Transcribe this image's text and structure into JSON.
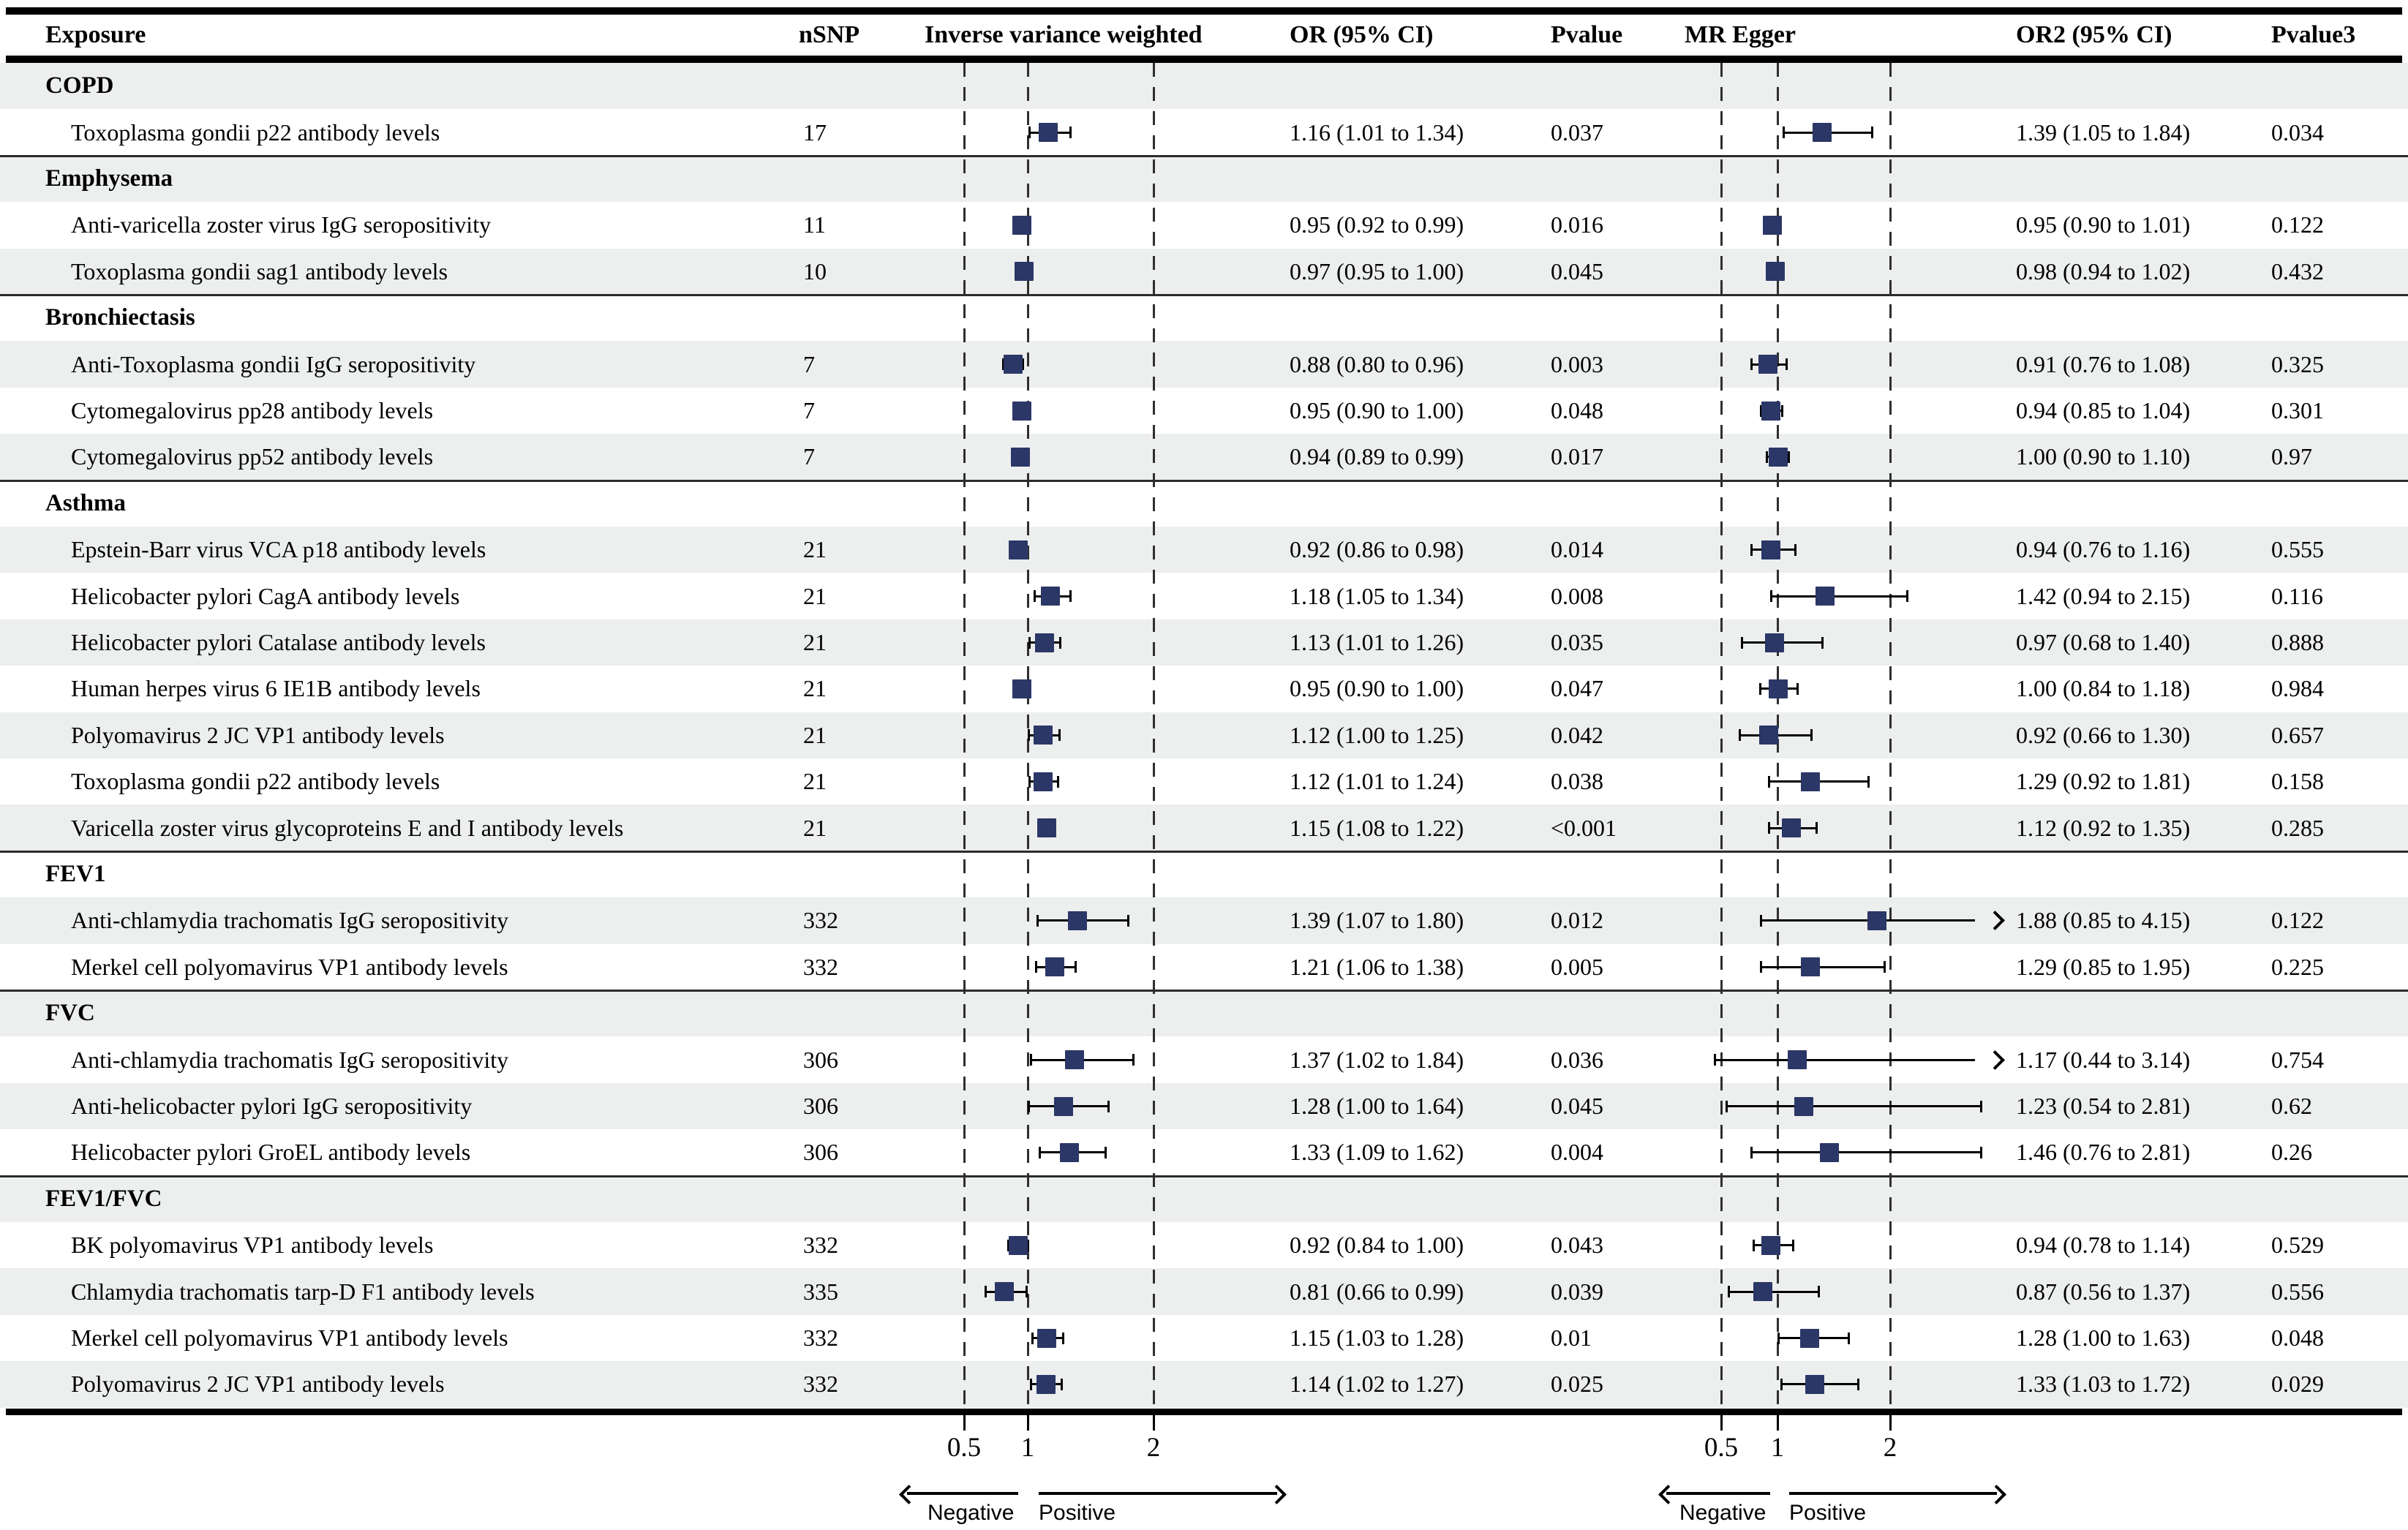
{
  "header": {
    "exposure": "Exposure",
    "nsnp": "nSNP",
    "ivw": "Inverse variance weighted",
    "or": "OR (95% CI)",
    "pvalue": "Pvalue",
    "egger": "MR Egger",
    "or2": "OR2 (95% CI)",
    "pvalue3": "Pvalue3"
  },
  "axis": {
    "ticks": [
      "0.5",
      "1",
      "2"
    ],
    "negative": "Negative",
    "positive": "Positive"
  },
  "colors": {
    "marker": "#2b3766",
    "row_shade": "#ecefee",
    "accent_line": "#000000"
  },
  "chart_data": {
    "type": "forest",
    "x_scale": "linear",
    "x_ticks": [
      0.5,
      1,
      2
    ],
    "series_names": [
      "Inverse variance weighted",
      "MR Egger"
    ],
    "rows": [
      {
        "type": "group",
        "label": "COPD"
      },
      {
        "type": "data",
        "exposure": "Toxoplasma gondii p22 antibody levels",
        "nsnp": "17",
        "ivw": {
          "est": 1.16,
          "lo": 1.01,
          "hi": 1.34,
          "text": "1.16 (1.01 to 1.34)",
          "p": "0.037"
        },
        "egger": {
          "est": 1.39,
          "lo": 1.05,
          "hi": 1.84,
          "text": "1.39 (1.05 to 1.84)",
          "p": "0.034"
        }
      },
      {
        "type": "group",
        "label": "Emphysema"
      },
      {
        "type": "data",
        "exposure": "Anti-varicella zoster virus IgG seropositivity",
        "nsnp": "11",
        "ivw": {
          "est": 0.95,
          "lo": 0.92,
          "hi": 0.99,
          "text": "0.95 (0.92 to 0.99)",
          "p": "0.016"
        },
        "egger": {
          "est": 0.95,
          "lo": 0.9,
          "hi": 1.01,
          "text": "0.95 (0.90 to 1.01)",
          "p": "0.122"
        }
      },
      {
        "type": "data",
        "exposure": "Toxoplasma gondii sag1 antibody levels",
        "nsnp": "10",
        "ivw": {
          "est": 0.97,
          "lo": 0.95,
          "hi": 1.0,
          "text": "0.97 (0.95 to 1.00)",
          "p": "0.045"
        },
        "egger": {
          "est": 0.98,
          "lo": 0.94,
          "hi": 1.02,
          "text": "0.98 (0.94 to 1.02)",
          "p": "0.432"
        }
      },
      {
        "type": "group",
        "label": "Bronchiectasis"
      },
      {
        "type": "data",
        "exposure": "Anti-Toxoplasma gondii IgG seropositivity",
        "nsnp": "7",
        "ivw": {
          "est": 0.88,
          "lo": 0.8,
          "hi": 0.96,
          "text": "0.88 (0.80 to 0.96)",
          "p": "0.003"
        },
        "egger": {
          "est": 0.91,
          "lo": 0.76,
          "hi": 1.08,
          "text": "0.91 (0.76 to 1.08)",
          "p": "0.325"
        }
      },
      {
        "type": "data",
        "exposure": "Cytomegalovirus pp28 antibody levels",
        "nsnp": "7",
        "ivw": {
          "est": 0.95,
          "lo": 0.9,
          "hi": 1.0,
          "text": "0.95 (0.90 to 1.00)",
          "p": "0.048"
        },
        "egger": {
          "est": 0.94,
          "lo": 0.85,
          "hi": 1.04,
          "text": "0.94 (0.85 to 1.04)",
          "p": "0.301"
        }
      },
      {
        "type": "data",
        "exposure": "Cytomegalovirus pp52 antibody levels",
        "nsnp": "7",
        "ivw": {
          "est": 0.94,
          "lo": 0.89,
          "hi": 0.99,
          "text": "0.94 (0.89 to 0.99)",
          "p": "0.017"
        },
        "egger": {
          "est": 1.0,
          "lo": 0.9,
          "hi": 1.1,
          "text": "1.00 (0.90 to 1.10)",
          "p": "0.97"
        }
      },
      {
        "type": "group",
        "label": "Asthma"
      },
      {
        "type": "data",
        "exposure": "Epstein-Barr virus VCA p18 antibody levels",
        "nsnp": "21",
        "ivw": {
          "est": 0.92,
          "lo": 0.86,
          "hi": 0.98,
          "text": "0.92 (0.86 to 0.98)",
          "p": "0.014"
        },
        "egger": {
          "est": 0.94,
          "lo": 0.76,
          "hi": 1.16,
          "text": "0.94 (0.76 to 1.16)",
          "p": "0.555"
        }
      },
      {
        "type": "data",
        "exposure": "Helicobacter pylori CagA antibody levels",
        "nsnp": "21",
        "ivw": {
          "est": 1.18,
          "lo": 1.05,
          "hi": 1.34,
          "text": "1.18 (1.05 to 1.34)",
          "p": "0.008"
        },
        "egger": {
          "est": 1.42,
          "lo": 0.94,
          "hi": 2.15,
          "text": "1.42 (0.94 to 2.15)",
          "p": "0.116"
        }
      },
      {
        "type": "data",
        "exposure": "Helicobacter pylori Catalase antibody levels",
        "nsnp": "21",
        "ivw": {
          "est": 1.13,
          "lo": 1.01,
          "hi": 1.26,
          "text": "1.13 (1.01 to 1.26)",
          "p": "0.035"
        },
        "egger": {
          "est": 0.97,
          "lo": 0.68,
          "hi": 1.4,
          "text": "0.97 (0.68 to 1.40)",
          "p": "0.888"
        }
      },
      {
        "type": "data",
        "exposure": "Human herpes virus 6 IE1B antibody levels",
        "nsnp": "21",
        "ivw": {
          "est": 0.95,
          "lo": 0.9,
          "hi": 1.0,
          "text": "0.95 (0.90 to 1.00)",
          "p": "0.047"
        },
        "egger": {
          "est": 1.0,
          "lo": 0.84,
          "hi": 1.18,
          "text": "1.00 (0.84 to 1.18)",
          "p": "0.984"
        }
      },
      {
        "type": "data",
        "exposure": "Polyomavirus 2 JC VP1 antibody levels",
        "nsnp": "21",
        "ivw": {
          "est": 1.12,
          "lo": 1.0,
          "hi": 1.25,
          "text": "1.12 (1.00 to 1.25)",
          "p": "0.042"
        },
        "egger": {
          "est": 0.92,
          "lo": 0.66,
          "hi": 1.3,
          "text": "0.92 (0.66 to 1.30)",
          "p": "0.657"
        }
      },
      {
        "type": "data",
        "exposure": "Toxoplasma gondii p22 antibody levels",
        "nsnp": "21",
        "ivw": {
          "est": 1.12,
          "lo": 1.01,
          "hi": 1.24,
          "text": "1.12 (1.01 to 1.24)",
          "p": "0.038"
        },
        "egger": {
          "est": 1.29,
          "lo": 0.92,
          "hi": 1.81,
          "text": "1.29 (0.92 to 1.81)",
          "p": "0.158"
        }
      },
      {
        "type": "data",
        "exposure": "Varicella zoster virus glycoproteins E and I antibody levels",
        "nsnp": "21",
        "ivw": {
          "est": 1.15,
          "lo": 1.08,
          "hi": 1.22,
          "text": "1.15 (1.08 to 1.22)",
          "p": "<0.001"
        },
        "egger": {
          "est": 1.12,
          "lo": 0.92,
          "hi": 1.35,
          "text": "1.12 (0.92 to 1.35)",
          "p": "0.285"
        }
      },
      {
        "type": "group",
        "label": "FEV1"
      },
      {
        "type": "data",
        "exposure": "Anti-chlamydia trachomatis IgG seropositivity",
        "nsnp": "332",
        "ivw": {
          "est": 1.39,
          "lo": 1.07,
          "hi": 1.8,
          "text": "1.39 (1.07 to 1.80)",
          "p": "0.012"
        },
        "egger": {
          "est": 1.88,
          "lo": 0.85,
          "hi": 4.15,
          "text": "1.88 (0.85 to 4.15)",
          "p": "0.122"
        }
      },
      {
        "type": "data",
        "exposure": "Merkel cell polyomavirus VP1 antibody levels",
        "nsnp": "332",
        "ivw": {
          "est": 1.21,
          "lo": 1.06,
          "hi": 1.38,
          "text": "1.21 (1.06 to 1.38)",
          "p": "0.005"
        },
        "egger": {
          "est": 1.29,
          "lo": 0.85,
          "hi": 1.95,
          "text": "1.29 (0.85 to 1.95)",
          "p": "0.225"
        }
      },
      {
        "type": "group",
        "label": "FVC"
      },
      {
        "type": "data",
        "exposure": "Anti-chlamydia trachomatis IgG seropositivity",
        "nsnp": "306",
        "ivw": {
          "est": 1.37,
          "lo": 1.02,
          "hi": 1.84,
          "text": "1.37 (1.02 to 1.84)",
          "p": "0.036"
        },
        "egger": {
          "est": 1.17,
          "lo": 0.44,
          "hi": 3.14,
          "text": "1.17 (0.44 to 3.14)",
          "p": "0.754"
        }
      },
      {
        "type": "data",
        "exposure": "Anti-helicobacter pylori IgG seropositivity",
        "nsnp": "306",
        "ivw": {
          "est": 1.28,
          "lo": 1.0,
          "hi": 1.64,
          "text": "1.28 (1.00 to 1.64)",
          "p": "0.045"
        },
        "egger": {
          "est": 1.23,
          "lo": 0.54,
          "hi": 2.81,
          "text": "1.23 (0.54 to 2.81)",
          "p": "0.62"
        }
      },
      {
        "type": "data",
        "exposure": "Helicobacter pylori GroEL antibody levels",
        "nsnp": "306",
        "ivw": {
          "est": 1.33,
          "lo": 1.09,
          "hi": 1.62,
          "text": "1.33 (1.09 to 1.62)",
          "p": "0.004"
        },
        "egger": {
          "est": 1.46,
          "lo": 0.76,
          "hi": 2.81,
          "text": "1.46 (0.76 to 2.81)",
          "p": "0.26"
        }
      },
      {
        "type": "group",
        "label": "FEV1/FVC"
      },
      {
        "type": "data",
        "exposure": "BK polyomavirus VP1 antibody levels",
        "nsnp": "332",
        "ivw": {
          "est": 0.92,
          "lo": 0.84,
          "hi": 1.0,
          "text": "0.92 (0.84 to 1.00)",
          "p": "0.043"
        },
        "egger": {
          "est": 0.94,
          "lo": 0.78,
          "hi": 1.14,
          "text": "0.94 (0.78 to 1.14)",
          "p": "0.529"
        }
      },
      {
        "type": "data",
        "exposure": "Chlamydia trachomatis tarp-D F1 antibody levels",
        "nsnp": "335",
        "ivw": {
          "est": 0.81,
          "lo": 0.66,
          "hi": 0.99,
          "text": "0.81 (0.66 to 0.99)",
          "p": "0.039"
        },
        "egger": {
          "est": 0.87,
          "lo": 0.56,
          "hi": 1.37,
          "text": "0.87 (0.56 to 1.37)",
          "p": "0.556"
        }
      },
      {
        "type": "data",
        "exposure": "Merkel cell polyomavirus VP1 antibody levels",
        "nsnp": "332",
        "ivw": {
          "est": 1.15,
          "lo": 1.03,
          "hi": 1.28,
          "text": "1.15 (1.03 to 1.28)",
          "p": "0.01"
        },
        "egger": {
          "est": 1.28,
          "lo": 1.0,
          "hi": 1.63,
          "text": "1.28 (1.00 to 1.63)",
          "p": "0.048"
        }
      },
      {
        "type": "data",
        "exposure": "Polyomavirus 2 JC VP1 antibody levels",
        "nsnp": "332",
        "ivw": {
          "est": 1.14,
          "lo": 1.02,
          "hi": 1.27,
          "text": "1.14 (1.02 to 1.27)",
          "p": "0.025"
        },
        "egger": {
          "est": 1.33,
          "lo": 1.03,
          "hi": 1.72,
          "text": "1.33 (1.03 to 1.72)",
          "p": "0.029"
        }
      }
    ]
  }
}
